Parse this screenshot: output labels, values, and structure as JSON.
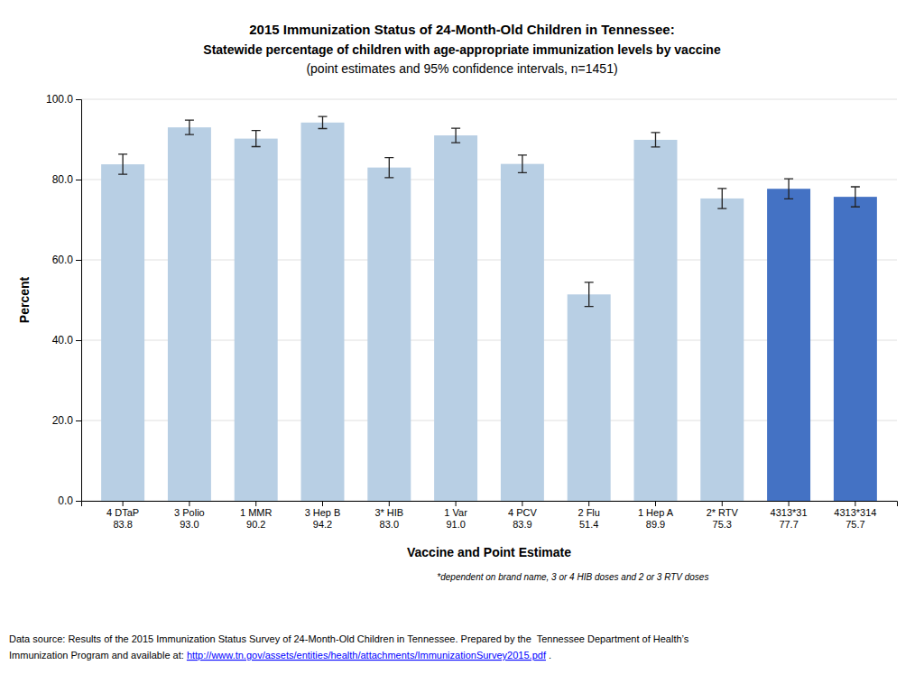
{
  "chart_data": {
    "type": "bar",
    "title": "2015 Immunization Status of 24-Month-Old Children in Tennessee:",
    "subtitle": [
      "Statewide percentage of children with age-appropriate immunization levels by vaccine",
      "(point estimates and 95% confidence intervals, n=1451)"
    ],
    "x_label": "Vaccine and Point Estimate",
    "y_label": "Percent",
    "categories": [
      "4 DTaP\n83.8",
      "3 Polio\n93.0",
      "1 MMR\n90.2",
      "3 Hep B\n94.2",
      "3* HIB\n83.0",
      "1 Var\n91.0",
      "4 PCV\n83.9",
      "2 Flu\n51.4",
      "1 Hep A\n89.9",
      "2* RTV\n75.3",
      "4313*31\n77.7",
      "4313*314\n75.7"
    ],
    "values": [
      83.8,
      93.0,
      90.2,
      94.2,
      83.0,
      91.0,
      83.9,
      51.4,
      89.9,
      75.3,
      77.7,
      75.7
    ],
    "errors": [
      2.5,
      1.8,
      2.0,
      1.5,
      2.5,
      1.8,
      2.2,
      3.0,
      1.8,
      2.5,
      2.5,
      2.5
    ],
    "colors": [
      "#b8cfe4",
      "#b8cfe4",
      "#b8cfe4",
      "#b8cfe4",
      "#b8cfe4",
      "#b8cfe4",
      "#b8cfe4",
      "#b8cfe4",
      "#b8cfe4",
      "#b8cfe4",
      "#4472c4",
      "#4472c4"
    ],
    "ylim": [
      0,
      100
    ],
    "yticks": [
      {
        "value": 0,
        "label": "0.0"
      },
      {
        "value": 20,
        "label": "20.0"
      },
      {
        "value": 40,
        "label": "40.0"
      },
      {
        "value": 60,
        "label": "60.0"
      },
      {
        "value": 80,
        "label": "80.0"
      },
      {
        "value": 100,
        "label": "100.0"
      }
    ],
    "grid": true,
    "annotations": [
      "*dependent on brand name, 3 or 4 HIB doses and 2 or 3 RTV doses",
      "Data source: Results of the 2015 Immunization Status Survey of 24-Month-Old Children in Tennessee. Prepared by the  Tennessee Department of Health’s",
      "Immunization Program and available at: ",
      "http://www.tn.gov/assets/entities/health/attachments/ImmunizationSurvey2015.pdf",
      " ."
    ]
  }
}
